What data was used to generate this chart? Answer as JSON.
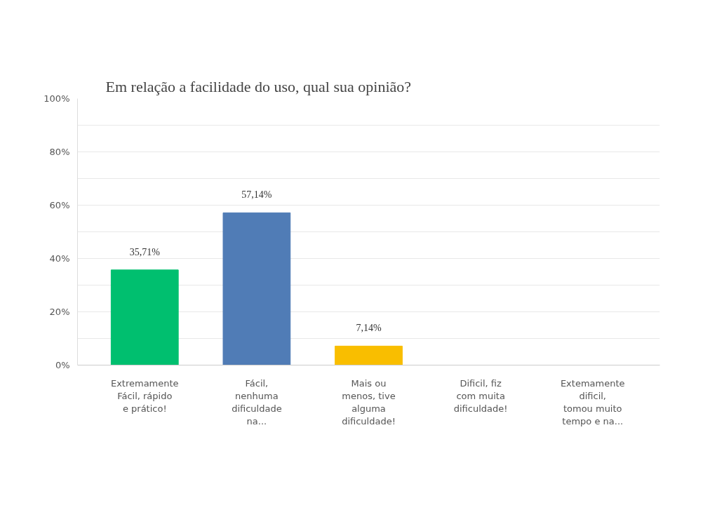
{
  "chart_data": {
    "type": "bar",
    "title": "Em relação a facilidade do uso, qual sua opinião?",
    "categories": [
      "Extremamente\nFácil, rápido\ne prático!",
      "Fácil,\nnenhuma\ndificuldade\nna...",
      "Mais ou\nmenos, tive\nalguma\ndificuldade!",
      "Dificil, fiz\ncom muita\ndificuldade!",
      "Extemamente\ndificil,\ntomou muito\ntempo e na..."
    ],
    "values": [
      35.71,
      57.14,
      7.14,
      0,
      0
    ],
    "colors": [
      "#00bf6f",
      "#507cb6",
      "#f9be00",
      "#00bf6f",
      "#00bf6f"
    ],
    "value_labels": [
      "35,71%",
      "57,14%",
      "7,14%",
      null,
      null
    ],
    "ylim": [
      0,
      100
    ],
    "yticks": [
      {
        "value": 0,
        "label": "0%"
      },
      {
        "value": 10,
        "label": null
      },
      {
        "value": 20,
        "label": "20%"
      },
      {
        "value": 30,
        "label": null
      },
      {
        "value": 40,
        "label": "40%"
      },
      {
        "value": 50,
        "label": null
      },
      {
        "value": 60,
        "label": "60%"
      },
      {
        "value": 70,
        "label": null
      },
      {
        "value": 80,
        "label": "80%"
      },
      {
        "value": 90,
        "label": null
      },
      {
        "value": 100,
        "label": "100%"
      }
    ],
    "grid": "y"
  }
}
